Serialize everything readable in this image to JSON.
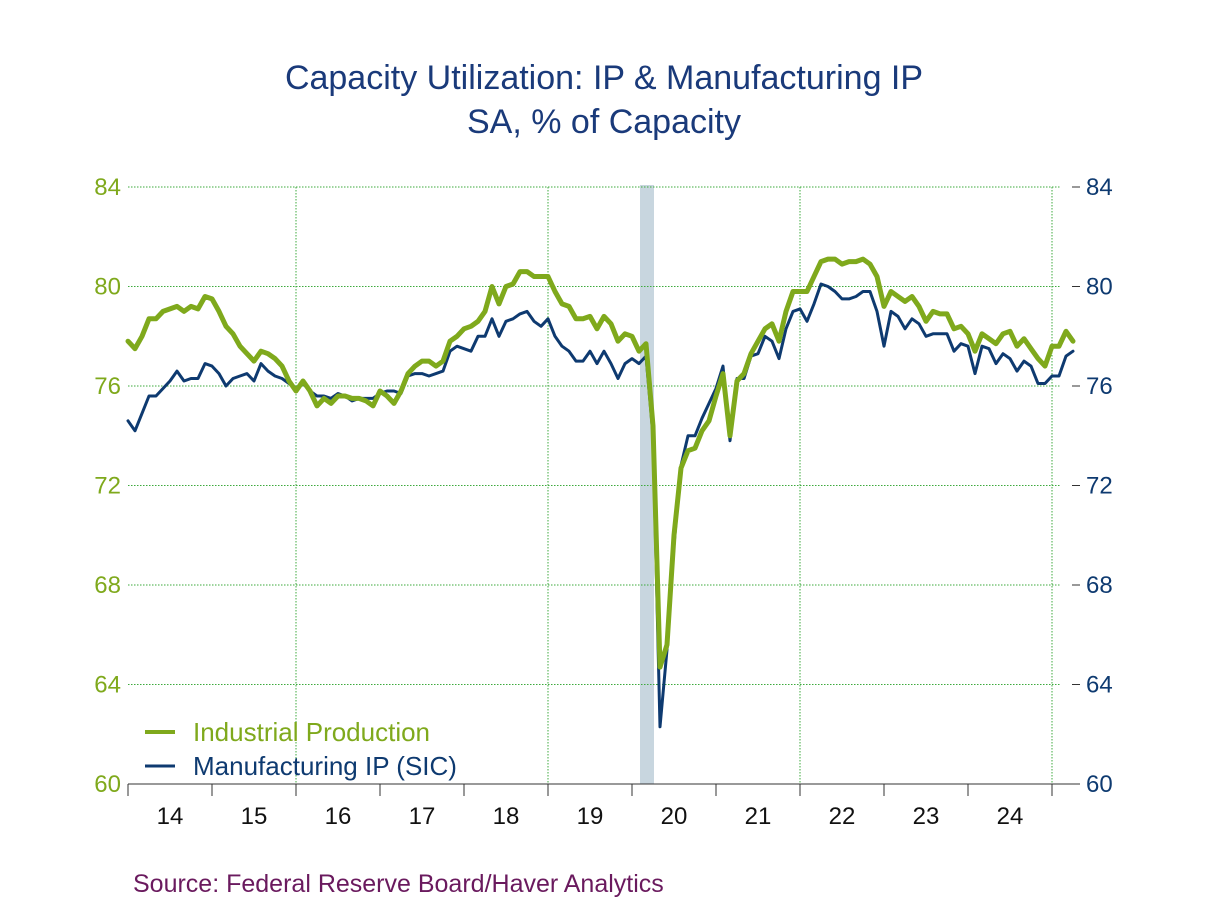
{
  "title": "Capacity Utilization: IP & Manufacturing IP",
  "subtitle": "SA, % of Capacity",
  "source": "Source:  Federal Reserve Board/Haver Analytics",
  "colors": {
    "ip": "#7fa91c",
    "mfg": "#0e3a70",
    "left_axis": "#7fa91c",
    "right_axis": "#0e3a70",
    "grid": "#3daa3d",
    "recession": "#c8d6df",
    "title": "#1a3a7a",
    "source": "#6a1a5e"
  },
  "chart_data": {
    "type": "line",
    "frequency": "monthly",
    "x_start": "2014-01",
    "ylim": [
      60,
      84
    ],
    "y_ticks": [
      60,
      64,
      68,
      72,
      76,
      80,
      84
    ],
    "x_tick_labels": [
      "14",
      "15",
      "16",
      "17",
      "18",
      "19",
      "20",
      "21",
      "22",
      "23",
      "24"
    ],
    "grid": true,
    "legend_position": "bottom-left",
    "shaded_period": [
      "2020-02",
      "2020-04"
    ],
    "series": [
      {
        "name": "Industrial Production",
        "axis": "left",
        "color": "#7fa91c",
        "values": [
          77.8,
          77.5,
          78.0,
          78.7,
          78.7,
          79.0,
          79.1,
          79.2,
          79.0,
          79.2,
          79.1,
          79.6,
          79.5,
          79.0,
          78.4,
          78.1,
          77.6,
          77.3,
          77.0,
          77.4,
          77.3,
          77.1,
          76.8,
          76.2,
          75.8,
          76.2,
          75.8,
          75.2,
          75.5,
          75.3,
          75.6,
          75.6,
          75.5,
          75.5,
          75.4,
          75.2,
          75.8,
          75.6,
          75.3,
          75.8,
          76.5,
          76.8,
          77.0,
          77.0,
          76.8,
          77.0,
          77.8,
          78.0,
          78.3,
          78.4,
          78.6,
          79.0,
          80.0,
          79.3,
          80.0,
          80.1,
          80.6,
          80.6,
          80.4,
          80.4,
          80.4,
          79.8,
          79.3,
          79.2,
          78.7,
          78.7,
          78.8,
          78.3,
          78.8,
          78.5,
          77.8,
          78.1,
          78.0,
          77.4,
          77.7,
          74.4,
          64.7,
          65.6,
          70.0,
          72.7,
          73.4,
          73.5,
          74.2,
          74.6,
          75.6,
          76.5,
          74.0,
          76.2,
          76.5,
          77.3,
          77.8,
          78.3,
          78.5,
          77.8,
          79.0,
          79.8,
          79.8,
          79.8,
          80.4,
          81.0,
          81.1,
          81.1,
          80.9,
          81.0,
          81.0,
          81.1,
          80.9,
          80.4,
          79.2,
          79.8,
          79.6,
          79.4,
          79.6,
          79.2,
          78.6,
          79.0,
          78.9,
          78.9,
          78.3,
          78.4,
          78.1,
          77.4,
          78.1,
          77.9,
          77.7,
          78.1,
          78.2,
          77.6,
          77.9,
          77.5,
          77.1,
          76.8,
          77.6,
          77.6,
          78.2,
          77.8
        ]
      },
      {
        "name": "Manufacturing IP (SIC)",
        "axis": "right",
        "color": "#0e3a70",
        "values": [
          74.6,
          74.2,
          74.9,
          75.6,
          75.6,
          75.9,
          76.2,
          76.6,
          76.2,
          76.3,
          76.3,
          76.9,
          76.8,
          76.5,
          76.0,
          76.3,
          76.4,
          76.5,
          76.2,
          76.9,
          76.6,
          76.4,
          76.3,
          76.1,
          75.9,
          76.1,
          75.8,
          75.6,
          75.6,
          75.5,
          75.7,
          75.6,
          75.4,
          75.5,
          75.5,
          75.5,
          75.7,
          75.8,
          75.8,
          75.7,
          76.4,
          76.5,
          76.5,
          76.4,
          76.5,
          76.6,
          77.4,
          77.6,
          77.5,
          77.4,
          78.0,
          78.0,
          78.7,
          78.0,
          78.6,
          78.7,
          78.9,
          79.0,
          78.6,
          78.4,
          78.7,
          78.0,
          77.6,
          77.4,
          77.0,
          77.0,
          77.4,
          76.9,
          77.4,
          76.9,
          76.3,
          76.9,
          77.1,
          76.9,
          77.2,
          74.0,
          62.3,
          65.4,
          69.6,
          72.8,
          74.0,
          74.0,
          74.7,
          75.3,
          75.9,
          76.8,
          73.8,
          76.3,
          76.3,
          77.2,
          77.3,
          78.0,
          77.8,
          77.1,
          78.3,
          79.0,
          79.1,
          78.6,
          79.3,
          80.1,
          80.0,
          79.8,
          79.5,
          79.5,
          79.6,
          79.8,
          79.8,
          79.0,
          77.6,
          79.0,
          78.8,
          78.3,
          78.7,
          78.5,
          78.0,
          78.1,
          78.1,
          78.1,
          77.4,
          77.7,
          77.6,
          76.5,
          77.6,
          77.5,
          76.9,
          77.3,
          77.1,
          76.6,
          77.0,
          76.8,
          76.1,
          76.1,
          76.4,
          76.4,
          77.2,
          77.4
        ]
      }
    ]
  }
}
